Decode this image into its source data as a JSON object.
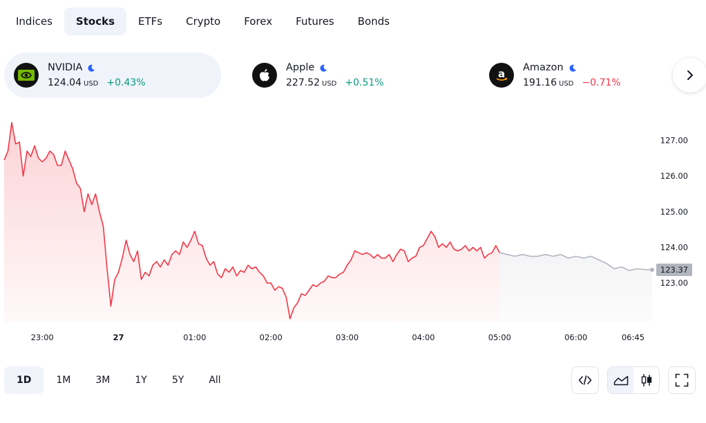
{
  "tabs": [
    "Indices",
    "Stocks",
    "ETFs",
    "Crypto",
    "Forex",
    "Futures",
    "Bonds"
  ],
  "active_tab": "Stocks",
  "tickers": [
    {
      "name": "NVIDIA",
      "price": "124.04",
      "currency": "USD",
      "change": "+0.43%",
      "direction": "up",
      "logo": "nvidia-logo"
    },
    {
      "name": "Apple",
      "price": "227.52",
      "currency": "USD",
      "change": "+0.51%",
      "direction": "up",
      "logo": "apple-logo"
    },
    {
      "name": "Amazon",
      "price": "191.16",
      "currency": "USD",
      "change": "−0.71%",
      "direction": "down",
      "logo": "amazon-logo"
    }
  ],
  "colors": {
    "up": "#089981",
    "down": "#f23645",
    "line": "#f23645",
    "extended": "#b2b5be",
    "accent": "#2962ff"
  },
  "chart_data": {
    "type": "area",
    "title": "",
    "y_ticks": [
      "127.00",
      "126.00",
      "125.00",
      "124.00",
      "123.00"
    ],
    "y_tick_values": [
      127,
      126,
      125,
      124,
      123
    ],
    "ylim": [
      121.9,
      127.55
    ],
    "x_ticks": [
      "23:00",
      "27",
      "01:00",
      "02:00",
      "03:00",
      "04:00",
      "05:00",
      "06:00",
      "06:45"
    ],
    "current_price_label": "123.37",
    "current_price": 123.37,
    "session_x": [
      22.5,
      22.55,
      22.6,
      22.65,
      22.7,
      22.75,
      22.8,
      22.85,
      22.9,
      22.95,
      23.0,
      23.05,
      23.1,
      23.15,
      23.2,
      23.25,
      23.3,
      23.35,
      23.4,
      23.45,
      23.5,
      23.55,
      23.6,
      23.65,
      23.7,
      23.75,
      23.8,
      23.85,
      23.9,
      23.95,
      24.0,
      24.05,
      24.1,
      24.15,
      24.2,
      24.25,
      24.3,
      24.35,
      24.4,
      24.45,
      24.5,
      24.55,
      24.6,
      24.65,
      24.7,
      24.75,
      24.8,
      24.85,
      24.9,
      24.95,
      25.0,
      25.05,
      25.1,
      25.15,
      25.2,
      25.25,
      25.3,
      25.35,
      25.4,
      25.45,
      25.5,
      25.55,
      25.6,
      25.65,
      25.7,
      25.75,
      25.8,
      25.85,
      25.9,
      25.95,
      26.0,
      26.05,
      26.1,
      26.15,
      26.2,
      26.25,
      26.3,
      26.35,
      26.4,
      26.45,
      26.5,
      26.55,
      26.6,
      26.65,
      26.7,
      26.75,
      26.8,
      26.85,
      26.9,
      26.95,
      27.0,
      27.05,
      27.1,
      27.15,
      27.2,
      27.25,
      27.3,
      27.35,
      27.4,
      27.45,
      27.5,
      27.55,
      27.6,
      27.65,
      27.7,
      27.75,
      27.8,
      27.85,
      27.9,
      27.95,
      28.0,
      28.05,
      28.1,
      28.15,
      28.2,
      28.25,
      28.3,
      28.35,
      28.4,
      28.45,
      28.5,
      28.55,
      28.6,
      28.65,
      28.7,
      28.75,
      28.8,
      28.85,
      28.9,
      28.95,
      29.0
    ],
    "session_y": [
      126.45,
      126.7,
      127.5,
      126.9,
      126.95,
      126.0,
      126.7,
      126.55,
      126.85,
      126.5,
      126.4,
      126.5,
      126.7,
      126.6,
      126.3,
      126.3,
      126.7,
      126.45,
      126.2,
      125.8,
      125.65,
      125.0,
      125.5,
      125.2,
      125.5,
      125.0,
      124.6,
      123.4,
      122.35,
      123.1,
      123.3,
      123.7,
      124.2,
      123.8,
      123.6,
      123.9,
      123.1,
      123.3,
      123.2,
      123.5,
      123.6,
      123.45,
      123.65,
      123.5,
      123.8,
      123.9,
      123.8,
      124.15,
      124.0,
      124.2,
      124.45,
      124.1,
      124.05,
      123.7,
      123.5,
      123.6,
      123.25,
      123.15,
      123.4,
      123.3,
      123.45,
      123.2,
      123.35,
      123.3,
      123.5,
      123.4,
      123.45,
      123.3,
      123.2,
      123.0,
      123.0,
      122.8,
      122.9,
      122.85,
      122.6,
      122.0,
      122.3,
      122.45,
      122.7,
      122.65,
      122.8,
      122.95,
      122.9,
      123.0,
      123.05,
      123.2,
      123.15,
      123.15,
      123.25,
      123.3,
      123.5,
      123.65,
      123.9,
      123.85,
      123.8,
      123.85,
      123.8,
      123.7,
      123.8,
      123.7,
      123.7,
      123.8,
      123.6,
      123.8,
      123.95,
      123.9,
      123.6,
      123.7,
      123.75,
      124.0,
      124.05,
      124.25,
      124.45,
      124.3,
      124.0,
      124.1,
      124.0,
      124.15,
      123.95,
      123.9,
      123.95,
      124.05,
      123.9,
      124.0,
      123.9,
      124.0,
      123.7,
      123.8,
      123.85,
      124.05,
      123.85
    ],
    "extended_x": [
      29.0,
      29.1,
      29.2,
      29.3,
      29.4,
      29.5,
      29.6,
      29.7,
      29.8,
      29.9,
      30.0,
      30.1,
      30.2,
      30.3,
      30.4,
      30.5,
      30.6,
      30.7,
      30.8,
      30.9,
      31.0
    ],
    "extended_y": [
      123.85,
      123.8,
      123.75,
      123.8,
      123.75,
      123.75,
      123.8,
      123.75,
      123.8,
      123.7,
      123.75,
      123.7,
      123.75,
      123.65,
      123.55,
      123.4,
      123.45,
      123.35,
      123.4,
      123.38,
      123.37
    ]
  },
  "ranges": [
    "1D",
    "1M",
    "3M",
    "1Y",
    "5Y",
    "All"
  ],
  "active_range": "1D",
  "tools": {
    "embed": "code-embed-icon",
    "area": "area-chart-icon",
    "candles": "candlestick-icon",
    "fullscreen": "fullscreen-icon"
  }
}
